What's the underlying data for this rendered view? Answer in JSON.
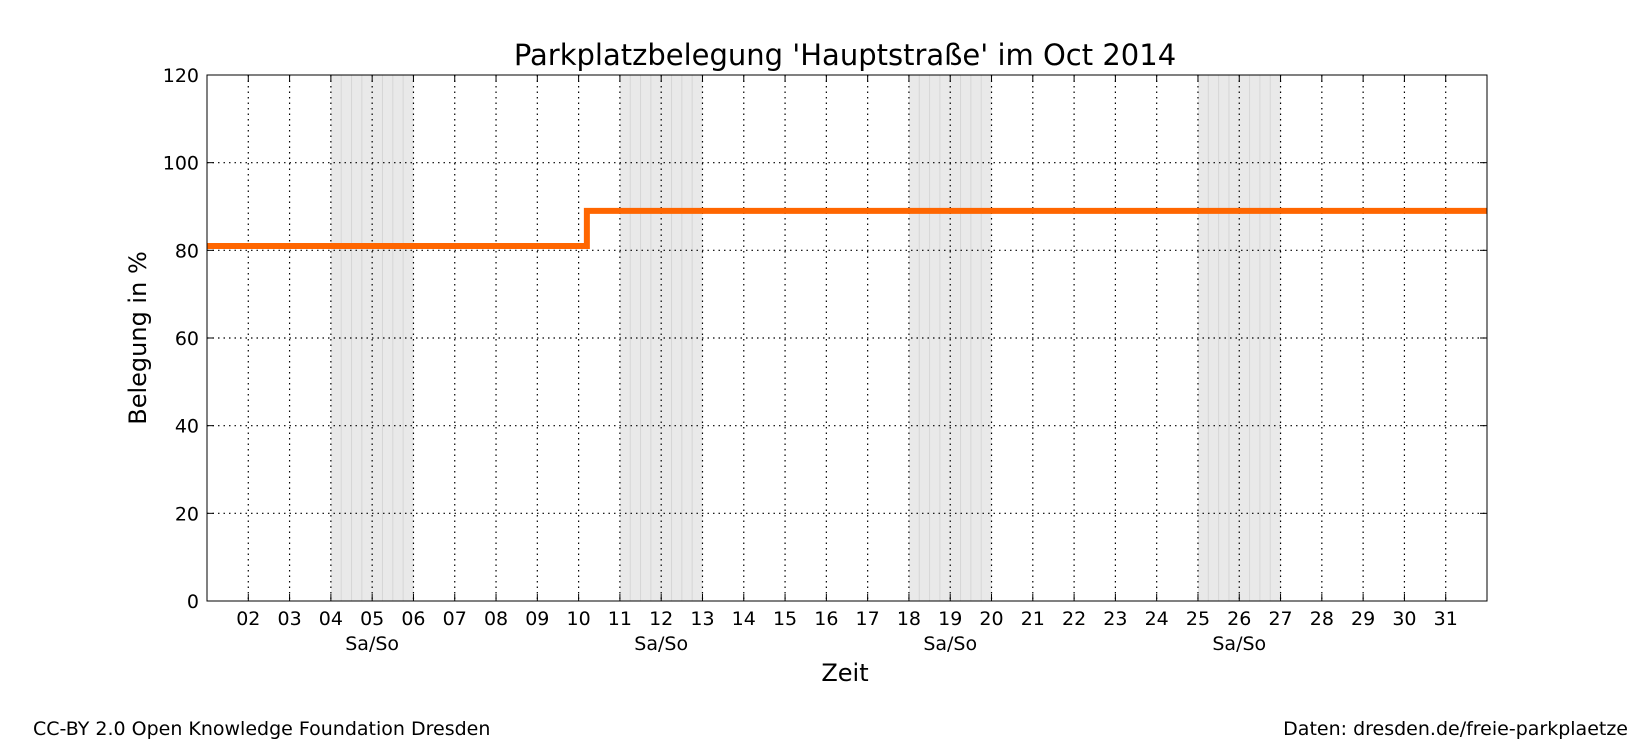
{
  "chart_data": {
    "type": "line",
    "title": "Parkplatzbelegung 'Hauptstraße' im Oct 2014",
    "xlabel": "Zeit",
    "ylabel": "Belegung in %",
    "ylim": [
      0,
      120
    ],
    "yticks": [
      0,
      20,
      40,
      60,
      80,
      100,
      120
    ],
    "xlim": [
      1,
      32
    ],
    "xticks": [
      {
        "x": 2,
        "label": "02"
      },
      {
        "x": 3,
        "label": "03"
      },
      {
        "x": 4,
        "label": "04"
      },
      {
        "x": 5,
        "label": "05"
      },
      {
        "x": 6,
        "label": "06"
      },
      {
        "x": 7,
        "label": "07"
      },
      {
        "x": 8,
        "label": "08"
      },
      {
        "x": 9,
        "label": "09"
      },
      {
        "x": 10,
        "label": "10"
      },
      {
        "x": 11,
        "label": "11"
      },
      {
        "x": 12,
        "label": "12"
      },
      {
        "x": 13,
        "label": "13"
      },
      {
        "x": 14,
        "label": "14"
      },
      {
        "x": 15,
        "label": "15"
      },
      {
        "x": 16,
        "label": "16"
      },
      {
        "x": 17,
        "label": "17"
      },
      {
        "x": 18,
        "label": "18"
      },
      {
        "x": 19,
        "label": "19"
      },
      {
        "x": 20,
        "label": "20"
      },
      {
        "x": 21,
        "label": "21"
      },
      {
        "x": 22,
        "label": "22"
      },
      {
        "x": 23,
        "label": "23"
      },
      {
        "x": 24,
        "label": "24"
      },
      {
        "x": 25,
        "label": "25"
      },
      {
        "x": 26,
        "label": "26"
      },
      {
        "x": 27,
        "label": "27"
      },
      {
        "x": 28,
        "label": "28"
      },
      {
        "x": 29,
        "label": "29"
      },
      {
        "x": 30,
        "label": "30"
      },
      {
        "x": 31,
        "label": "31"
      }
    ],
    "weekends": [
      {
        "start": 4,
        "end": 6,
        "label": "Sa/So"
      },
      {
        "start": 11,
        "end": 13,
        "label": "Sa/So"
      },
      {
        "start": 18,
        "end": 20,
        "label": "Sa/So"
      },
      {
        "start": 25,
        "end": 27,
        "label": "Sa/So"
      }
    ],
    "grid": true,
    "series": [
      {
        "color": "#ff6600",
        "x": [
          1,
          10.2,
          10.2,
          32
        ],
        "y": [
          81,
          81,
          89,
          89
        ]
      }
    ]
  },
  "footer": {
    "license": "CC-BY 2.0 Open Knowledge Foundation Dresden",
    "source": "Daten: dresden.de/freie-parkplaetze"
  }
}
